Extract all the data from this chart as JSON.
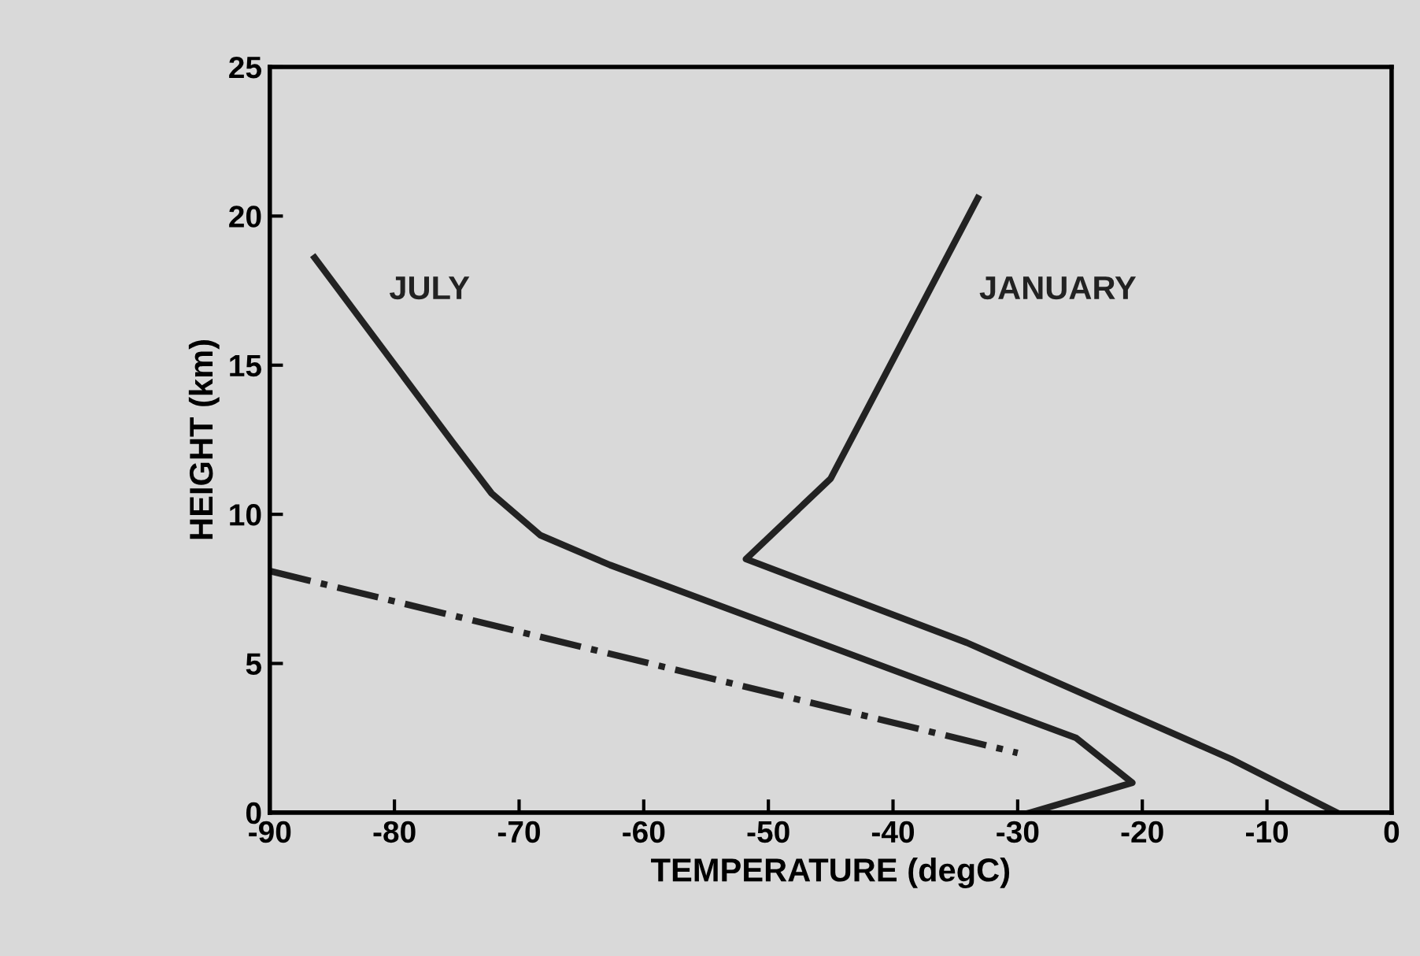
{
  "chart_data": {
    "type": "line",
    "xlabel": "TEMPERATURE (degC)",
    "ylabel": "HEIGHT (km)",
    "series": [
      {
        "name": "JULY",
        "color": "#222222",
        "x": [
          -29.0,
          -20.8,
          -25.3,
          -62.7,
          -68.3,
          -72.2,
          -75.3,
          -86.4
        ],
        "values": [
          0,
          1.0,
          2.5,
          8.3,
          9.3,
          10.7,
          12.4,
          18.6
        ]
      },
      {
        "name": "JANUARY",
        "color": "#222222",
        "x": [
          -4.4,
          -12.9,
          -34.1,
          -51.8,
          -45.0,
          -33.2
        ],
        "values": [
          0,
          1.8,
          5.7,
          8.5,
          11.2,
          20.6
        ]
      },
      {
        "color": "#222222",
        "x": [
          -90,
          -30
        ],
        "values": [
          8.1,
          2.0
        ],
        "line_style": "dashdot"
      }
    ],
    "xlim": [
      -90,
      0
    ],
    "ylim": [
      0,
      25
    ],
    "xticks": [
      -90,
      -80,
      -70,
      -60,
      -50,
      -40,
      -30,
      -20,
      -10,
      0
    ],
    "yticks": [
      0,
      5,
      10,
      15,
      20,
      25
    ],
    "grid": false,
    "legend": false,
    "line_style": "solid",
    "marker": "none"
  }
}
